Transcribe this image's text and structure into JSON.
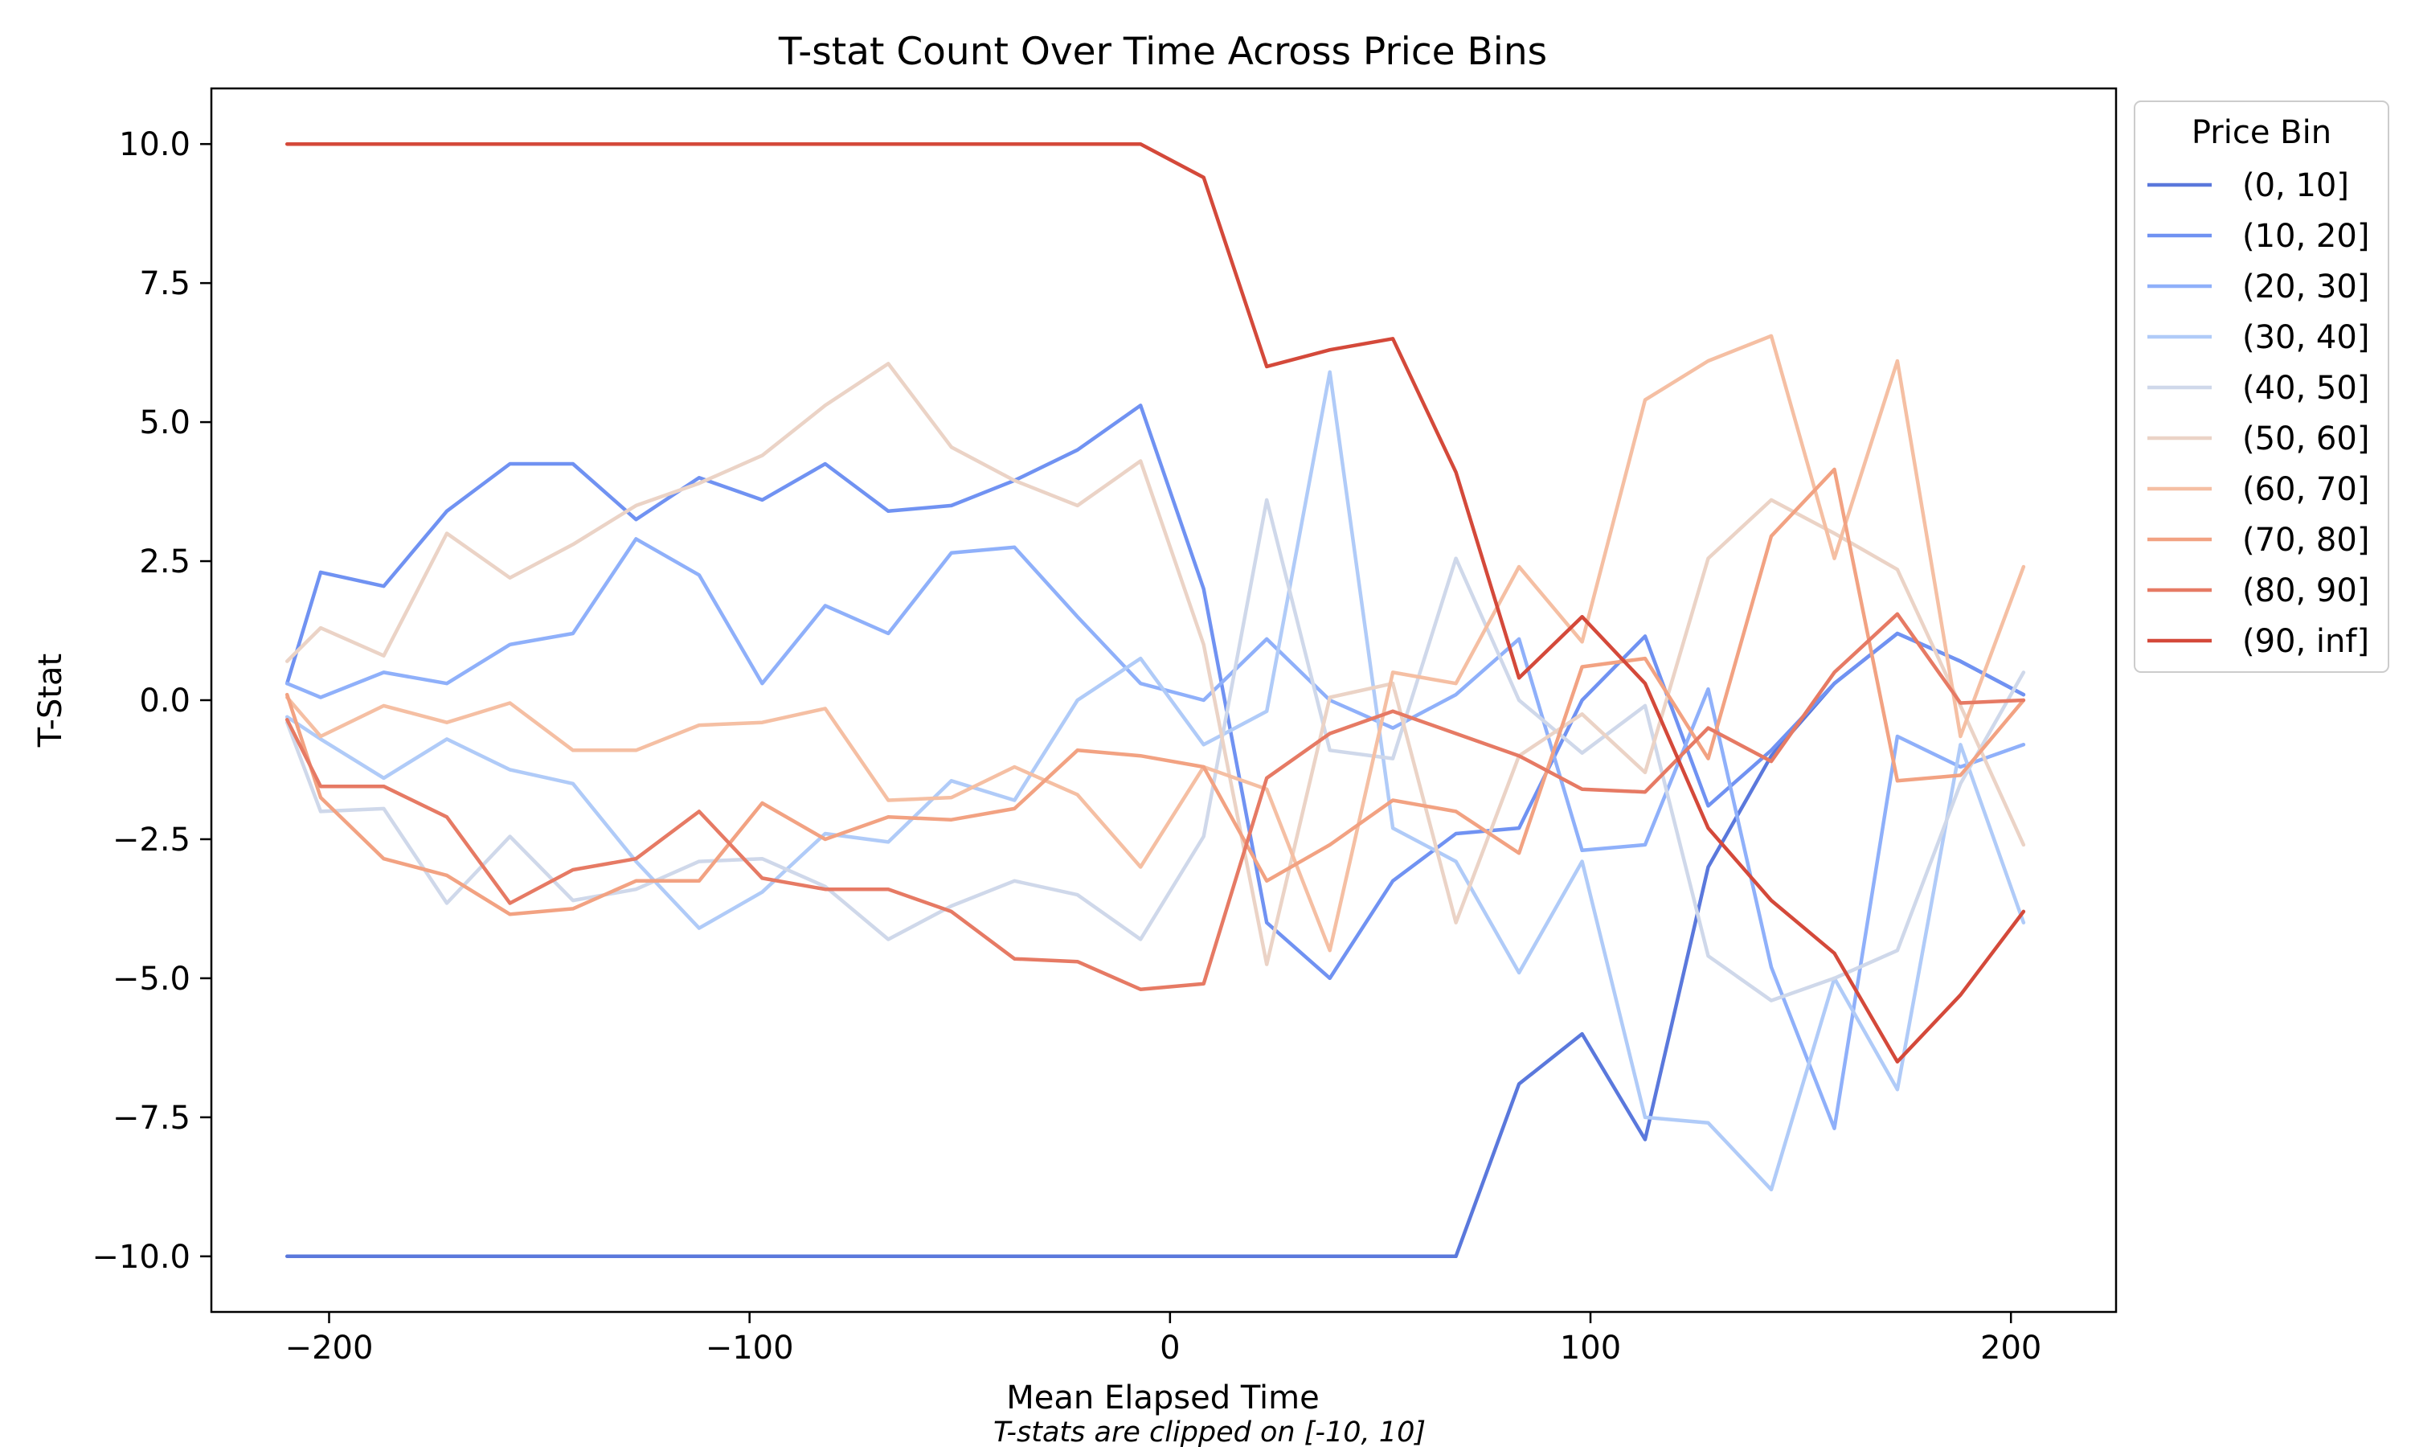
{
  "chart_data": {
    "type": "line",
    "title": "T-stat Count Over Time Across Price Bins",
    "xlabel": "Mean Elapsed Time",
    "ylabel": "T-Stat",
    "footnote": "T-stats are clipped on [-10, 10]",
    "xlim": [
      -228,
      225
    ],
    "ylim": [
      -11,
      11
    ],
    "x_ticks": [
      -200,
      -100,
      0,
      100,
      200
    ],
    "x_tick_labels": [
      "−200",
      "−100",
      "0",
      "100",
      "200"
    ],
    "y_ticks": [
      -10,
      -7.5,
      -5,
      -2.5,
      0,
      2.5,
      5,
      7.5,
      10
    ],
    "y_tick_labels": [
      "−10.0",
      "−7.5",
      "−5.0",
      "−2.5",
      "0.0",
      "2.5",
      "5.0",
      "7.5",
      "10.0"
    ],
    "grid": false,
    "legend": {
      "title": "Price Bin",
      "position": "outside right, top"
    },
    "x": [
      -210,
      -202,
      -187,
      -172,
      -157,
      -142,
      -127,
      -112,
      -97,
      -82,
      -67,
      -52,
      -37,
      -22,
      -7,
      8,
      23,
      38,
      53,
      68,
      83,
      98,
      113,
      128,
      143,
      158,
      173,
      188,
      203
    ],
    "series": [
      {
        "name": "(0, 10]",
        "color": "#5a78dc",
        "values": [
          -10,
          -10,
          -10,
          -10,
          -10,
          -10,
          -10,
          -10,
          -10,
          -10,
          -10,
          -10,
          -10,
          -10,
          -10,
          -10,
          -10,
          -10,
          -10,
          -10,
          -6.9,
          -6.0,
          -7.9,
          -3.0,
          -1.0,
          0.3,
          1.2,
          0.7,
          0.1
        ]
      },
      {
        "name": "(10, 20]",
        "color": "#7092f2",
        "values": [
          0.3,
          2.3,
          2.05,
          3.4,
          4.25,
          4.25,
          3.25,
          4.0,
          3.6,
          4.25,
          3.4,
          3.5,
          3.95,
          4.5,
          5.3,
          2.0,
          -4.0,
          -5.0,
          -3.25,
          -2.4,
          -2.3,
          0,
          1.15,
          -1.9,
          -0.9,
          0.3,
          1.2,
          0.7,
          0.1
        ]
      },
      {
        "name": "(20, 30]",
        "color": "#8fb0fa",
        "values": [
          0.3,
          0.05,
          0.5,
          0.3,
          1.0,
          1.2,
          2.9,
          2.25,
          0.3,
          1.7,
          1.2,
          2.65,
          2.75,
          1.5,
          0.3,
          0.0,
          1.1,
          0,
          -0.5,
          0.1,
          1.1,
          -2.7,
          -2.6,
          0.2,
          -4.8,
          -7.7,
          -0.65,
          -1.2,
          -0.8
        ]
      },
      {
        "name": "(30, 40]",
        "color": "#b0cbf8",
        "values": [
          -0.3,
          -0.7,
          -1.4,
          -0.7,
          -1.25,
          -1.5,
          -2.9,
          -4.1,
          -3.45,
          -2.4,
          -2.55,
          -1.45,
          -1.8,
          0,
          0.75,
          -0.8,
          -0.2,
          5.9,
          -2.3,
          -2.9,
          -4.9,
          -2.9,
          -7.5,
          -7.6,
          -8.8,
          -5.0,
          -7.0,
          -0.8,
          -4.0
        ]
      },
      {
        "name": "(40, 50]",
        "color": "#cfd8ea",
        "values": [
          -0.4,
          -2.0,
          -1.95,
          -3.65,
          -2.45,
          -3.6,
          -3.4,
          -2.9,
          -2.85,
          -3.35,
          -4.3,
          -3.7,
          -3.25,
          -3.5,
          -4.3,
          -2.45,
          3.6,
          -0.9,
          -1.05,
          2.55,
          0.0,
          -0.95,
          -0.1,
          -4.6,
          -5.4,
          -5.0,
          -4.5,
          -1.5,
          0.5
        ]
      },
      {
        "name": "(50, 60]",
        "color": "#ebd3c6",
        "values": [
          0.7,
          1.3,
          0.8,
          3.0,
          2.2,
          2.8,
          3.5,
          3.9,
          4.4,
          5.3,
          6.05,
          4.55,
          3.95,
          3.5,
          4.3,
          1.0,
          -4.75,
          0.05,
          0.3,
          -4.0,
          -1.0,
          -0.25,
          -1.3,
          2.55,
          3.6,
          3.0,
          2.35,
          -0.1,
          -2.6
        ]
      },
      {
        "name": "(60, 70]",
        "color": "#f5bfa3",
        "values": [
          0.05,
          -0.65,
          -0.1,
          -0.4,
          -0.05,
          -0.9,
          -0.9,
          -0.45,
          -0.4,
          -0.15,
          -1.8,
          -1.75,
          -1.2,
          -1.7,
          -3.0,
          -1.2,
          -1.6,
          -4.5,
          0.5,
          0.3,
          2.4,
          1.05,
          5.4,
          6.1,
          6.55,
          2.55,
          6.1,
          -0.65,
          2.4
        ]
      },
      {
        "name": "(70, 80]",
        "color": "#f2a282",
        "values": [
          0.1,
          -1.75,
          -2.85,
          -3.15,
          -3.85,
          -3.75,
          -3.25,
          -3.25,
          -1.85,
          -2.5,
          -2.1,
          -2.15,
          -1.95,
          -0.9,
          -1.0,
          -1.2,
          -3.25,
          -2.6,
          -1.8,
          -2.0,
          -2.75,
          0.6,
          0.75,
          -1.05,
          2.95,
          4.15,
          -1.45,
          -1.35,
          0.0
        ]
      },
      {
        "name": "(80, 90]",
        "color": "#e67a64",
        "values": [
          -0.35,
          -1.55,
          -1.55,
          -2.1,
          -3.65,
          -3.05,
          -2.85,
          -2.0,
          -3.2,
          -3.4,
          -3.4,
          -3.8,
          -4.65,
          -4.7,
          -5.2,
          -5.1,
          -1.4,
          -0.6,
          -0.2,
          -0.6,
          -1.0,
          -1.6,
          -1.65,
          -0.5,
          -1.1,
          0.5,
          1.55,
          -0.05,
          0.0
        ]
      },
      {
        "name": "(90, inf]",
        "color": "#d4493a",
        "values": [
          10,
          10,
          10,
          10,
          10,
          10,
          10,
          10,
          10,
          10,
          10,
          10,
          10,
          10,
          10,
          9.4,
          6.0,
          6.3,
          6.5,
          4.1,
          0.4,
          1.5,
          0.3,
          -2.3,
          -3.6,
          -4.55,
          -6.5,
          -5.3,
          -3.8
        ]
      }
    ]
  }
}
